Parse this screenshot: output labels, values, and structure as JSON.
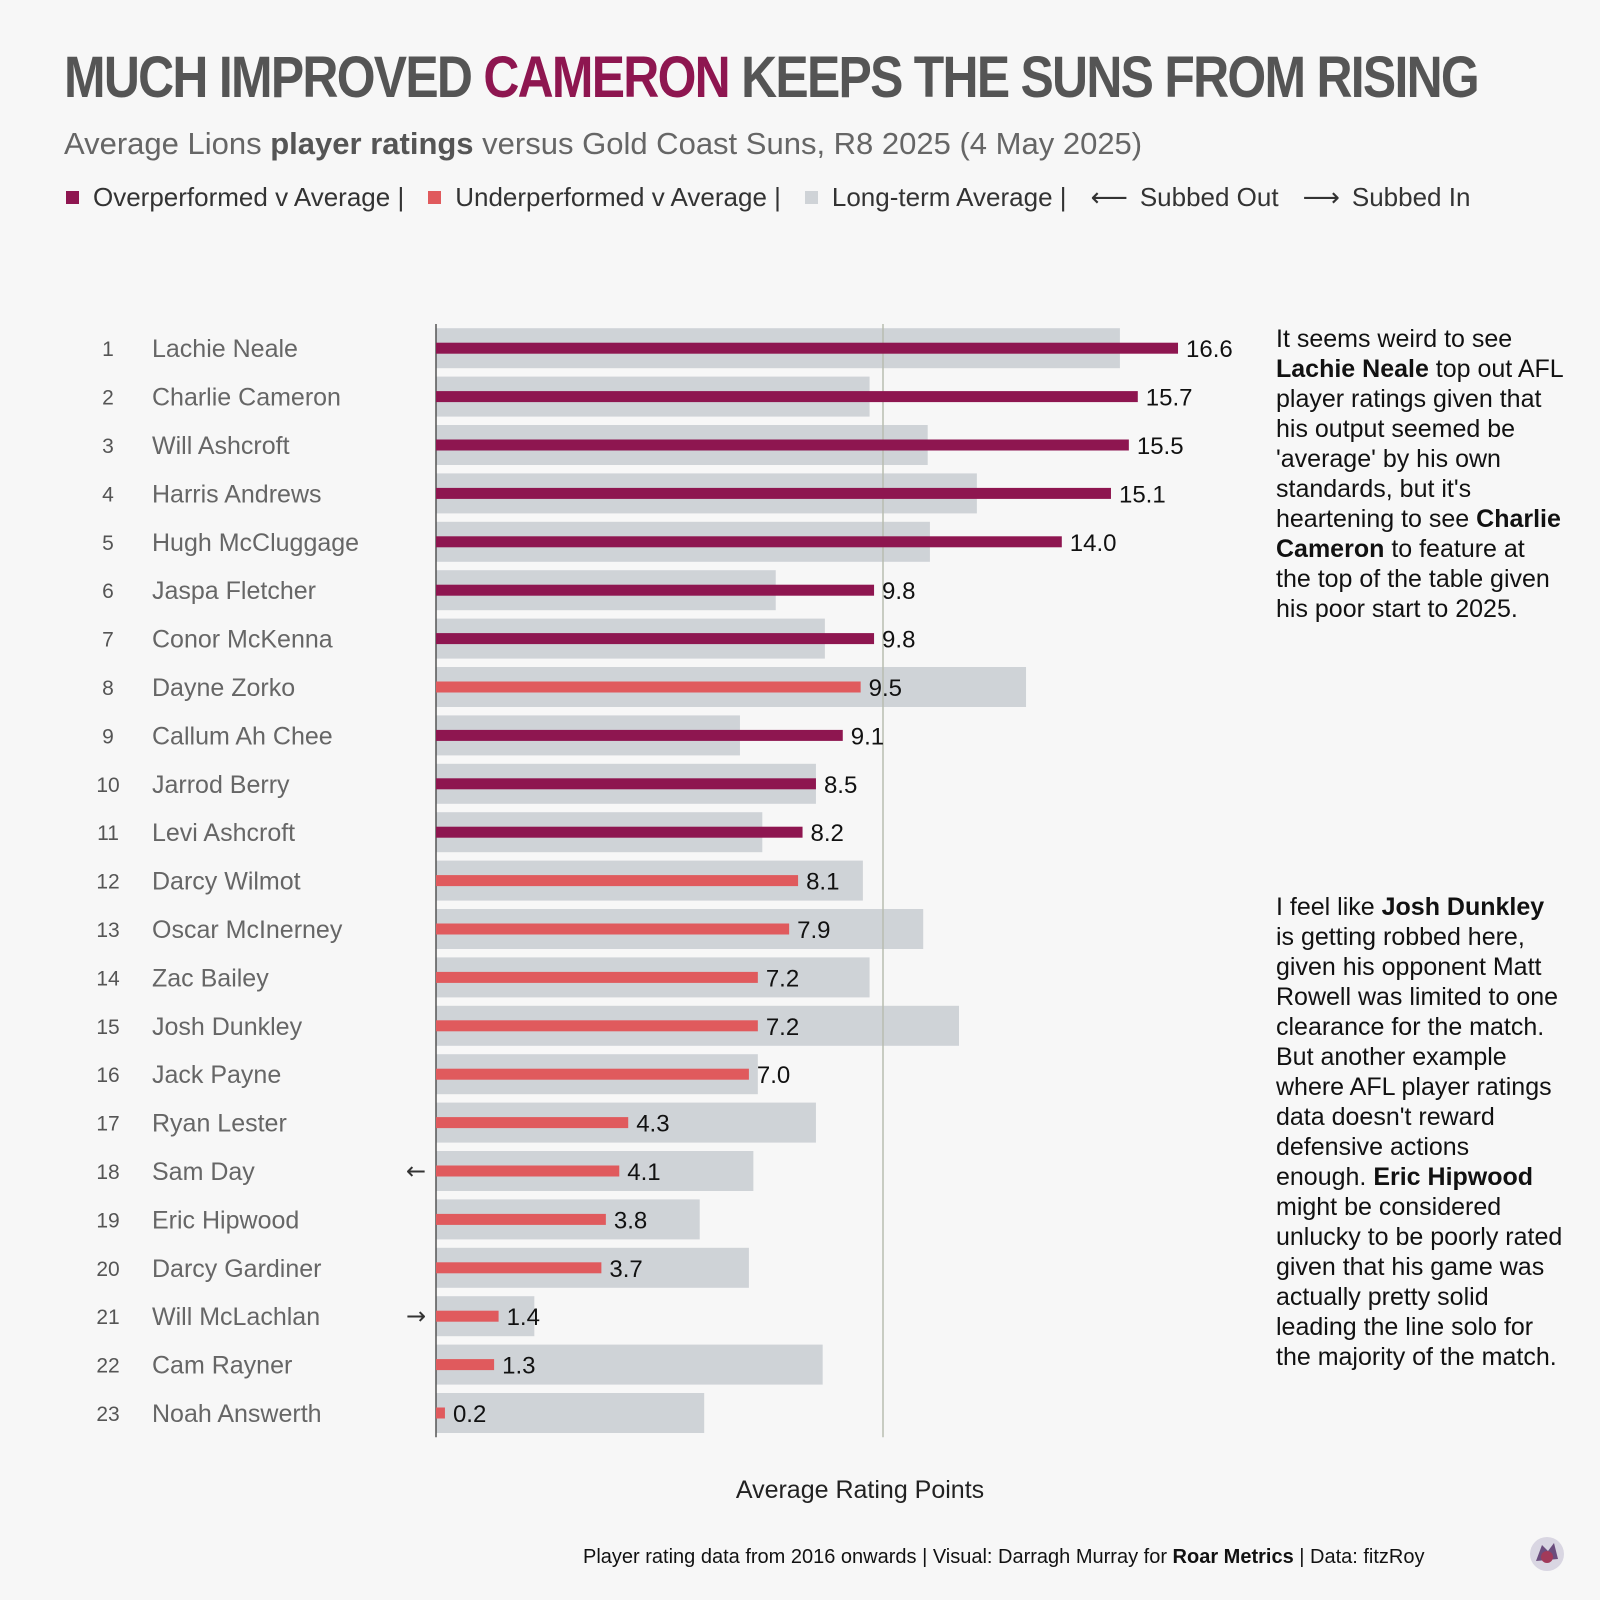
{
  "title": {
    "pre": "MUCH IMPROVED ",
    "highlight": "CAMERON",
    "post": " KEEPS THE SUNS FROM RISING"
  },
  "subtitle": {
    "pre": "Average Lions ",
    "bold": "player ratings",
    "post": " versus Gold Coast Suns, R8 2025 (4 May 2025)"
  },
  "legend": {
    "over": "Overperformed v Average |",
    "under": "Underperformed v Average |",
    "avg": "Long-term Average |",
    "out": "Subbed Out",
    "in": "Subbed In"
  },
  "colors": {
    "over": "#8e1650",
    "under": "#e05a5d",
    "avg": "#cfd3d7",
    "axis": "#555555",
    "refline": "#b9bdb0"
  },
  "notes": {
    "top": {
      "p1": "It seems weird to see ",
      "b1": "Lachie Neale",
      "p2": " top out AFL player ratings given that his output seemed be 'average' by his own standards, but it's heartening to see ",
      "b2": "Charlie Cameron",
      "p3": " to feature at the top of the table given his poor start to 2025."
    },
    "bottom": {
      "p1": "I feel like ",
      "b1": "Josh Dunkley",
      "p2": " is getting robbed here, given his opponent Matt Rowell was limited to one clearance for the match. But another example where AFL player ratings data doesn't reward defensive actions enough. ",
      "b2": "Eric Hipwood",
      "p3": " might be considered unlucky to be poorly rated given that his game was actually pretty solid leading the line solo for the majority of the match."
    }
  },
  "footer": {
    "pre": "Player rating data from 2016 onwards | Visual: Darragh Murray for ",
    "bold": "Roar Metrics",
    "post": " | Data: fitzRoy"
  },
  "chart_data": {
    "type": "bar",
    "orientation": "horizontal",
    "xlabel": "Average Rating Points",
    "xlim": [
      0,
      18.6
    ],
    "reference_line": 10,
    "categories": [
      "Lachie Neale",
      "Charlie Cameron",
      "Will Ashcroft",
      "Harris Andrews",
      "Hugh McCluggage",
      "Jaspa Fletcher",
      "Conor McKenna",
      "Dayne Zorko",
      "Callum Ah Chee",
      "Jarrod Berry",
      "Levi Ashcroft",
      "Darcy Wilmot",
      "Oscar McInerney",
      "Zac Bailey",
      "Josh Dunkley",
      "Jack Payne",
      "Ryan Lester",
      "Sam Day",
      "Eric Hipwood",
      "Darcy Gardiner",
      "Will McLachlan",
      "Cam Rayner",
      "Noah Answerth"
    ],
    "ranks": [
      "1",
      "2",
      "3",
      "4",
      "5",
      "6",
      "7",
      "8",
      "9",
      "10",
      "11",
      "12",
      "13",
      "14",
      "15",
      "16",
      "17",
      "18",
      "19",
      "20",
      "21",
      "22",
      "23"
    ],
    "series": [
      {
        "name": "Rating",
        "values": [
          16.6,
          15.7,
          15.5,
          15.1,
          14.0,
          9.8,
          9.8,
          9.5,
          9.1,
          8.5,
          8.2,
          8.1,
          7.9,
          7.2,
          7.2,
          7.0,
          4.3,
          4.1,
          3.8,
          3.7,
          1.4,
          1.3,
          0.2
        ]
      },
      {
        "name": "Long-term Average",
        "values": [
          15.3,
          9.7,
          11.0,
          12.1,
          11.05,
          7.6,
          8.7,
          13.2,
          6.8,
          8.5,
          7.3,
          9.55,
          10.9,
          9.7,
          11.7,
          7.2,
          8.5,
          7.1,
          5.9,
          7.0,
          2.2,
          8.65,
          6.0
        ]
      }
    ],
    "labels": [
      "16.6",
      "15.7",
      "15.5",
      "15.1",
      "14.0",
      "9.8",
      "9.8",
      "9.5",
      "9.1",
      "8.5",
      "8.2",
      "8.1",
      "7.9",
      "7.2",
      "7.2",
      "7.0",
      "4.3",
      "4.1",
      "3.8",
      "3.7",
      "1.4",
      "1.3",
      "0.2"
    ],
    "status": [
      "over",
      "over",
      "over",
      "over",
      "over",
      "over",
      "over",
      "under",
      "over",
      "over",
      "over",
      "under",
      "under",
      "under",
      "under",
      "under",
      "under",
      "under",
      "under",
      "under",
      "under",
      "under",
      "under"
    ],
    "subs": [
      "",
      "",
      "",
      "",
      "",
      "",
      "",
      "",
      "",
      "",
      "",
      "",
      "",
      "",
      "",
      "",
      "",
      "out",
      "",
      "",
      "in",
      "",
      ""
    ]
  }
}
